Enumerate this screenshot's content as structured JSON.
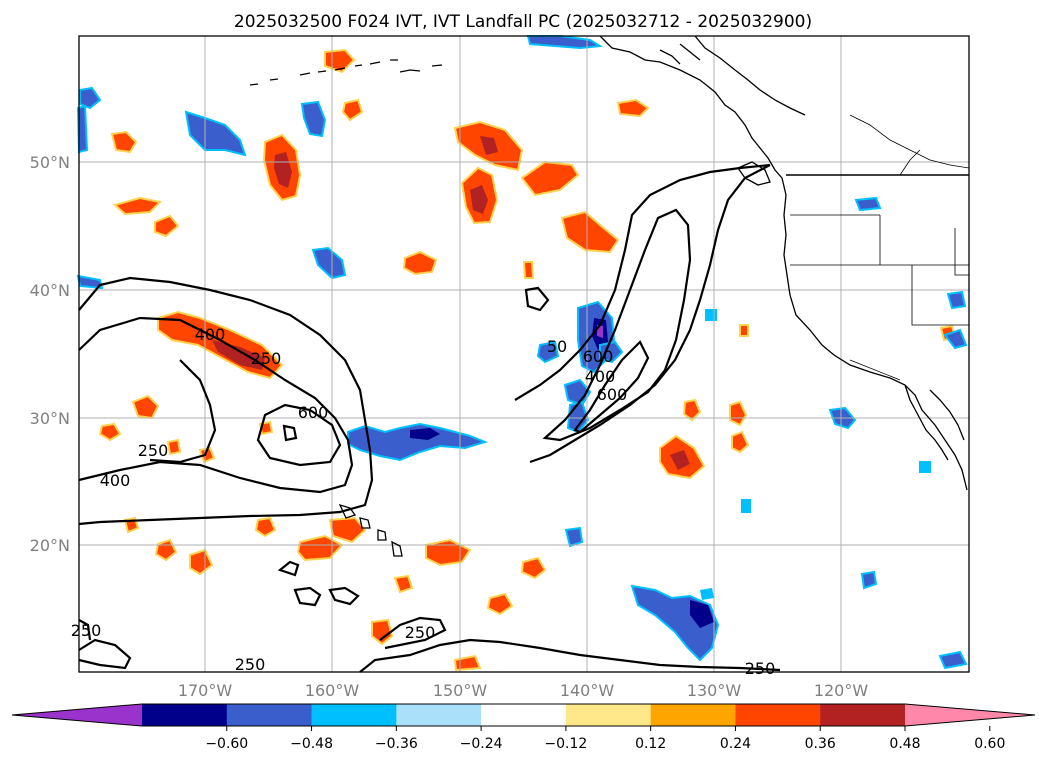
{
  "title": "2025032500 F024 IVT, IVT Landfall PC (2025032712 - 2025032900)",
  "lat_labels": [
    "50°N",
    "40°N",
    "30°N",
    "20°N"
  ],
  "lon_labels": [
    "170°W",
    "160°W",
    "150°W",
    "140°W",
    "130°W",
    "120°W"
  ],
  "colorbar": {
    "ticks": [
      "−0.60",
      "−0.48",
      "−0.36",
      "−0.24",
      "−0.12",
      "0.12",
      "0.24",
      "0.36",
      "0.48",
      "0.60"
    ],
    "colors": [
      "#9933cc",
      "#00008b",
      "#3a5fcd",
      "#00bfff",
      "#aae0fa",
      "#ffffff",
      "#ffe88a",
      "#ffa500",
      "#ff4500",
      "#b22222",
      "#ff88aa"
    ]
  },
  "contour_labels": [
    "400",
    "250",
    "600",
    "250",
    "400",
    "600",
    "400",
    "600",
    "250",
    "250",
    "250",
    "250",
    "50"
  ],
  "colors": {
    "land_outline": "#000000",
    "grid": "#b0b0b0",
    "axis_label": "#808080"
  }
}
